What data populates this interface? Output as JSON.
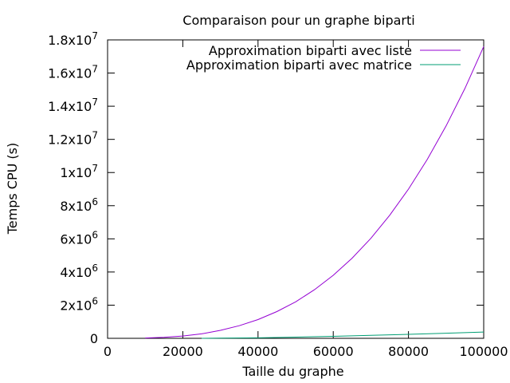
{
  "chart_data": {
    "type": "line",
    "title": "Comparaison pour un graphe biparti",
    "xlabel": "Taille du graphe",
    "ylabel": "Temps CPU (s)",
    "xlim": [
      0,
      100000
    ],
    "ylim": [
      0,
      18000000
    ],
    "grid": false,
    "legend_position": "top-right",
    "x_ticks": [
      {
        "value": 0,
        "label": "0"
      },
      {
        "value": 20000,
        "label": "20000"
      },
      {
        "value": 40000,
        "label": "40000"
      },
      {
        "value": 60000,
        "label": "60000"
      },
      {
        "value": 80000,
        "label": "80000"
      },
      {
        "value": 100000,
        "label": "100000"
      }
    ],
    "y_ticks": [
      {
        "value": 0,
        "base": "0",
        "exp": ""
      },
      {
        "value": 2000000,
        "base": "2x10",
        "exp": "6"
      },
      {
        "value": 4000000,
        "base": "4x10",
        "exp": "6"
      },
      {
        "value": 6000000,
        "base": "6x10",
        "exp": "6"
      },
      {
        "value": 8000000,
        "base": "8x10",
        "exp": "6"
      },
      {
        "value": 10000000,
        "base": "1x10",
        "exp": "7"
      },
      {
        "value": 12000000,
        "base": "1.2x10",
        "exp": "7"
      },
      {
        "value": 14000000,
        "base": "1.4x10",
        "exp": "7"
      },
      {
        "value": 16000000,
        "base": "1.6x10",
        "exp": "7"
      },
      {
        "value": 18000000,
        "base": "1.8x10",
        "exp": "7"
      }
    ],
    "series": [
      {
        "name": "Approximation biparti avec liste",
        "color": "#9400d3",
        "x": [
          10000,
          15000,
          20000,
          25000,
          30000,
          35000,
          40000,
          45000,
          50000,
          55000,
          60000,
          65000,
          70000,
          75000,
          80000,
          85000,
          90000,
          95000,
          100000
        ],
        "y": [
          20000,
          60000,
          140000,
          270000,
          480000,
          760000,
          1130000,
          1610000,
          2200000,
          2930000,
          3800000,
          4830000,
          6030000,
          7420000,
          9000000,
          10790000,
          12810000,
          15070000,
          17600000
        ]
      },
      {
        "name": "Approximation biparti avec matrice",
        "color": "#009e73",
        "x": [
          25000,
          30000,
          40000,
          50000,
          60000,
          70000,
          80000,
          90000,
          100000
        ],
        "y": [
          0,
          10000,
          30000,
          70000,
          120000,
          180000,
          240000,
          310000,
          380000
        ]
      }
    ]
  }
}
